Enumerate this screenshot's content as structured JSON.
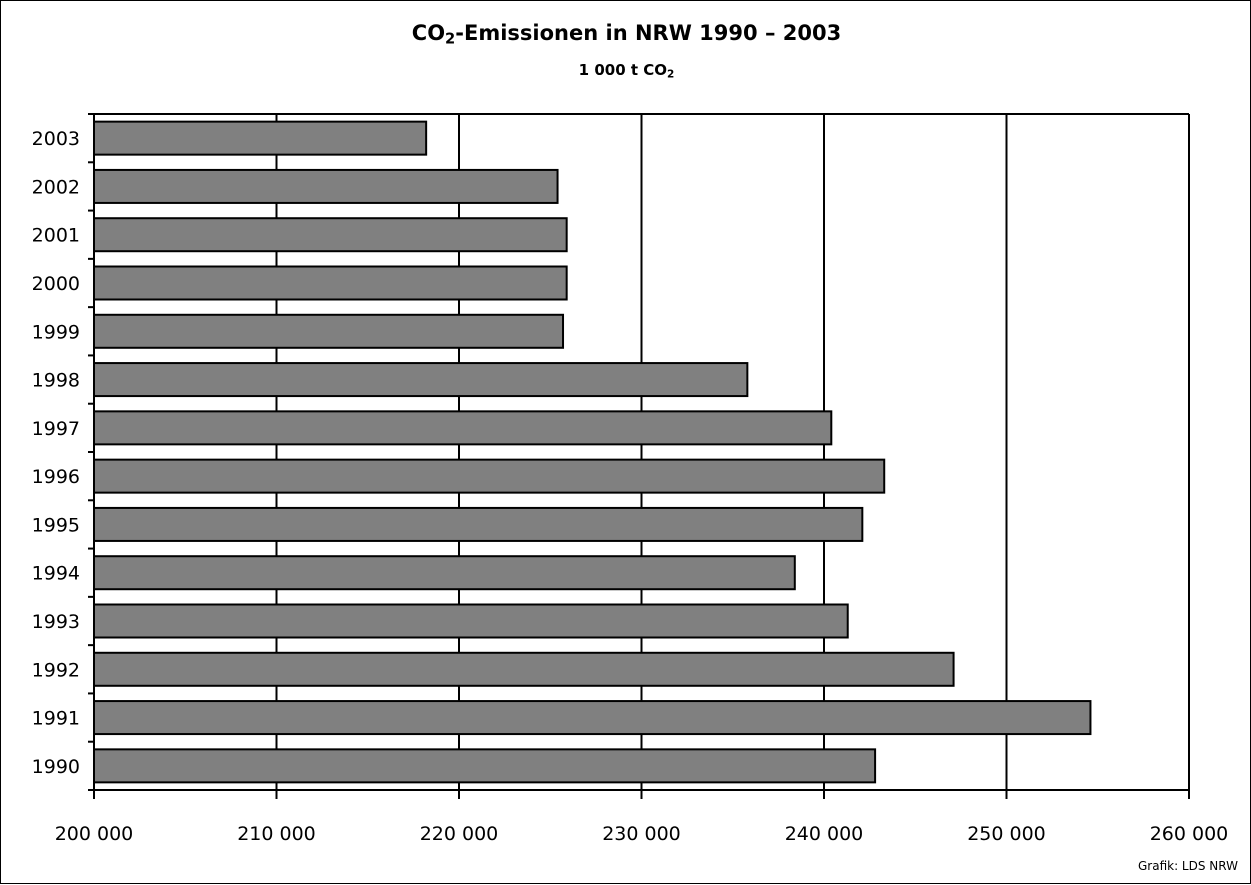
{
  "chart_data": {
    "type": "bar",
    "orientation": "horizontal",
    "title_main": "CO",
    "title_sub": "2",
    "title_rest": "-Emissionen in NRW 1990 – 2003",
    "unit_main": "1 000 t CO",
    "unit_sub": "2",
    "categories": [
      "1990",
      "1991",
      "1992",
      "1993",
      "1994",
      "1995",
      "1996",
      "1997",
      "1998",
      "1999",
      "2000",
      "2001",
      "2002",
      "2003"
    ],
    "values": [
      242800,
      254600,
      247100,
      241300,
      238400,
      242100,
      243300,
      240400,
      235800,
      225700,
      225900,
      225900,
      225400,
      218200
    ],
    "xlim": [
      200000,
      260000
    ],
    "xticks": [
      200000,
      210000,
      220000,
      230000,
      240000,
      250000,
      260000
    ],
    "xtick_labels": [
      "200 000",
      "210 000",
      "220 000",
      "230 000",
      "240 000",
      "250 000",
      "260 000"
    ],
    "grid": "vertical major",
    "bar_color": "#808080",
    "credit": "Grafik: LDS NRW"
  }
}
